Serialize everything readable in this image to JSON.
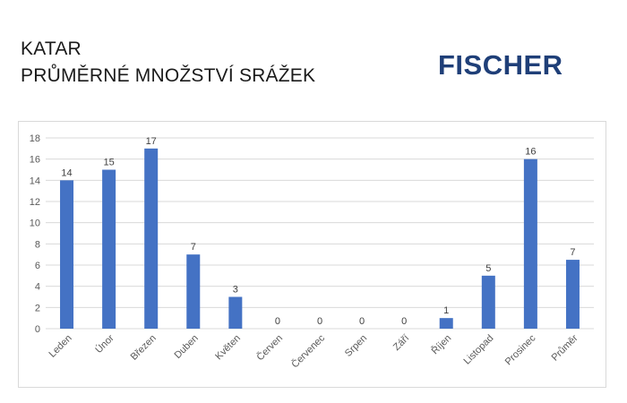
{
  "header": {
    "title_line1": "KATAR",
    "title_line2": "PRŮMĚRNÉ MNOŽSTVÍ SRÁŽEK",
    "logo_text": "FISCHER"
  },
  "colors": {
    "bar": "#4472c4",
    "logo": "#1f3f78",
    "grid": "#d9d9d9"
  },
  "chart_data": {
    "type": "bar",
    "title": "",
    "xlabel": "",
    "ylabel": "",
    "ylim": [
      0,
      18
    ],
    "yticks": [
      0,
      2,
      4,
      6,
      8,
      10,
      12,
      14,
      16,
      18
    ],
    "grid": true,
    "categories": [
      "Leden",
      "Únor",
      "Březen",
      "Duben",
      "Květen",
      "Červen",
      "Červenec",
      "Srpen",
      "Září",
      "Říjen",
      "Listopad",
      "Prosinec",
      "Průměr"
    ],
    "values": [
      14,
      15,
      17,
      7,
      3,
      0,
      0,
      0,
      0,
      1,
      5,
      16,
      6.5
    ],
    "data_labels": [
      "14",
      "15",
      "17",
      "7",
      "3",
      "0",
      "0",
      "0",
      "0",
      "1",
      "5",
      "16",
      "7"
    ]
  }
}
